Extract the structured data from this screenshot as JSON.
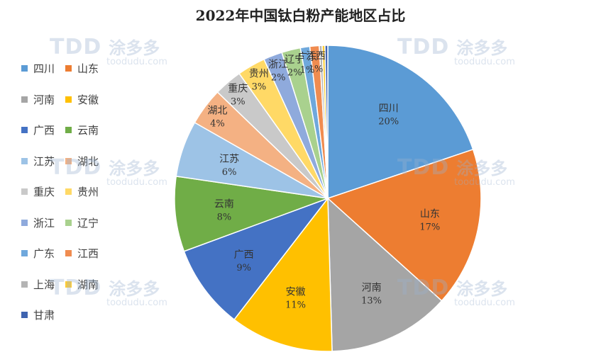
{
  "watermark": {
    "logo": "TDD",
    "cn": "涂多多",
    "url": "toodudu.com"
  },
  "chart_data": {
    "type": "pie",
    "title": "2022年中国钛白粉产能地区占比",
    "legend_position": "left",
    "slices": [
      {
        "label": "四川",
        "value": 20,
        "value_label": "20%",
        "color": "#5b9bd5"
      },
      {
        "label": "山东",
        "value": 17,
        "value_label": "17%",
        "color": "#ed7d31"
      },
      {
        "label": "河南",
        "value": 13,
        "value_label": "13%",
        "color": "#a5a5a5"
      },
      {
        "label": "安徽",
        "value": 11,
        "value_label": "11%",
        "color": "#ffc000"
      },
      {
        "label": "广西",
        "value": 9,
        "value_label": "9%",
        "color": "#4472c4"
      },
      {
        "label": "云南",
        "value": 8,
        "value_label": "8%",
        "color": "#70ad47"
      },
      {
        "label": "江苏",
        "value": 6,
        "value_label": "6%",
        "color": "#9dc3e6"
      },
      {
        "label": "湖北",
        "value": 4,
        "value_label": "4%",
        "color": "#f4b183"
      },
      {
        "label": "重庆",
        "value": 3,
        "value_label": "3%",
        "color": "#c9c9c9"
      },
      {
        "label": "贵州",
        "value": 3,
        "value_label": "3%",
        "color": "#ffd966"
      },
      {
        "label": "浙江",
        "value": 2,
        "value_label": "2%",
        "color": "#8faadc"
      },
      {
        "label": "辽宁",
        "value": 2,
        "value_label": "2%",
        "color": "#a9d18e"
      },
      {
        "label": "广东",
        "value": 1,
        "value_label": "1%",
        "color": "#6fa8dc"
      },
      {
        "label": "江西",
        "value": 1,
        "value_label": "1%",
        "color": "#f08c50"
      },
      {
        "label": "上海",
        "value": 0.3,
        "value_label": "",
        "color": "#b4b4b4"
      },
      {
        "label": "湖南",
        "value": 0.3,
        "value_label": "",
        "color": "#ffcc33"
      },
      {
        "label": "甘肃",
        "value": 0.3,
        "value_label": "",
        "color": "#3f64b0"
      }
    ]
  }
}
